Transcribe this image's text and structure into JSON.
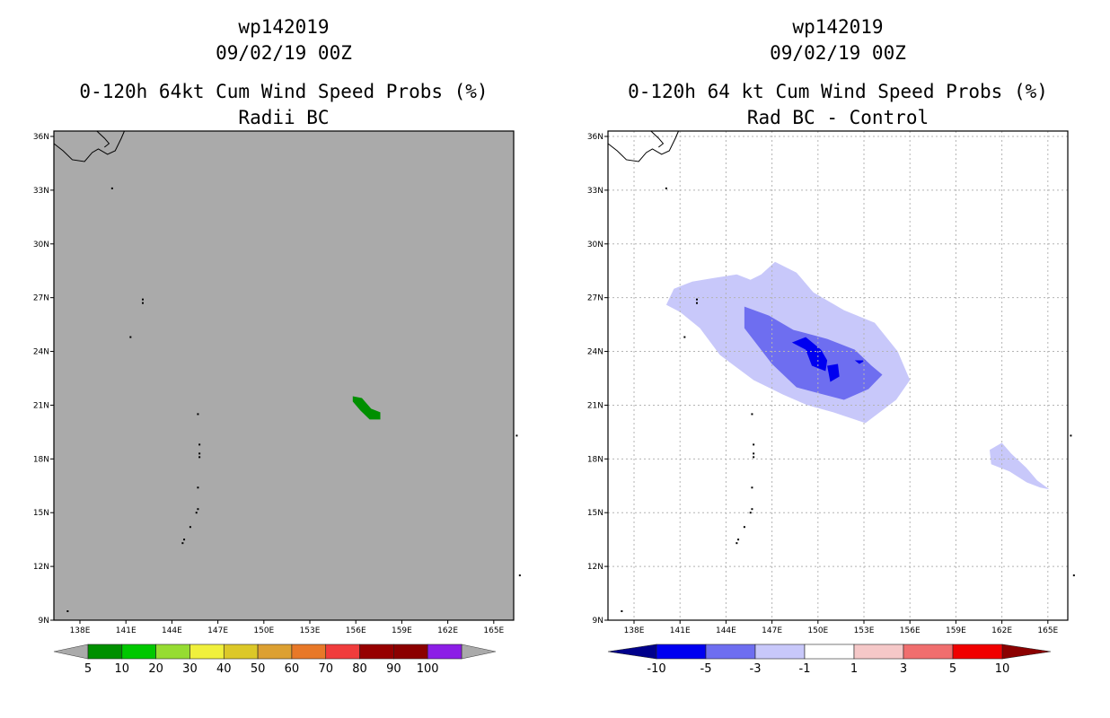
{
  "left_panel": {
    "title_line1": "wp142019",
    "title_line2": "09/02/19 00Z",
    "subtitle_line1": "0-120h 64kt Cum Wind Speed Probs (%)",
    "subtitle_line2": "Radii BC"
  },
  "right_panel": {
    "title_line1": "wp142019",
    "title_line2": "09/02/19 00Z",
    "subtitle_line1": "0-120h 64 kt Cum Wind Speed Probs (%)",
    "subtitle_line2": "Rad BC - Control"
  },
  "chart_data": [
    {
      "type": "heatmap",
      "name": "left",
      "title": "0-120h 64kt Cum Wind Speed Probs (%) Radii BC",
      "x_tick_labels": [
        "138E",
        "141E",
        "144E",
        "147E",
        "150E",
        "153E",
        "156E",
        "159E",
        "162E",
        "165E"
      ],
      "y_tick_labels": [
        "9N",
        "12N",
        "15N",
        "18N",
        "21N",
        "24N",
        "27N",
        "30N",
        "33N",
        "36N"
      ],
      "x_ticks": [
        138,
        141,
        144,
        147,
        150,
        153,
        156,
        159,
        162,
        165
      ],
      "y_ticks": [
        9,
        12,
        15,
        18,
        21,
        24,
        27,
        30,
        33,
        36
      ],
      "xlim": [
        136.3,
        166.3
      ],
      "ylim": [
        9,
        36.3
      ],
      "grid": false,
      "background_color": "#aaaaaa",
      "colorbar": {
        "labels": [
          "5",
          "10",
          "20",
          "30",
          "40",
          "50",
          "60",
          "70",
          "80",
          "90",
          "100"
        ],
        "colors": [
          "#008f00",
          "#00c800",
          "#96dc32",
          "#f0f03c",
          "#dcc828",
          "#dca032",
          "#e87828",
          "#f03c3c",
          "#960000",
          "#8b0000",
          "#8c1ee6"
        ]
      },
      "regions": [
        {
          "color": "#008f00",
          "points": [
            [
              155.8,
              21.5
            ],
            [
              156.4,
              21.4
            ],
            [
              157,
              20.8
            ],
            [
              157.6,
              20.6
            ],
            [
              157.6,
              20.2
            ],
            [
              156.9,
              20.2
            ],
            [
              156.3,
              20.7
            ],
            [
              155.8,
              21.2
            ]
          ]
        }
      ]
    },
    {
      "type": "heatmap",
      "name": "right",
      "title": "0-120h 64 kt Cum Wind Speed Probs (%) Rad BC - Control",
      "x_tick_labels": [
        "138E",
        "141E",
        "144E",
        "147E",
        "150E",
        "153E",
        "156E",
        "159E",
        "162E",
        "165E"
      ],
      "y_tick_labels": [
        "9N",
        "12N",
        "15N",
        "18N",
        "21N",
        "24N",
        "27N",
        "30N",
        "33N",
        "36N"
      ],
      "x_ticks": [
        138,
        141,
        144,
        147,
        150,
        153,
        156,
        159,
        162,
        165
      ],
      "y_ticks": [
        9,
        12,
        15,
        18,
        21,
        24,
        27,
        30,
        33,
        36
      ],
      "xlim": [
        136.3,
        166.3
      ],
      "ylim": [
        9,
        36.3
      ],
      "grid": true,
      "background_color": "#ffffff",
      "colorbar": {
        "labels": [
          "-10",
          "-5",
          "-3",
          "-1",
          "1",
          "3",
          "5",
          "10"
        ],
        "colors": [
          "#00008b",
          "#0000f0",
          "#6e6ef0",
          "#c8c8fa",
          "#ffffff",
          "#f5c8c8",
          "#f06e6e",
          "#f00000",
          "#8b0000"
        ]
      },
      "regions": [
        {
          "color": "#c8c8fa",
          "points": [
            [
              140.6,
              27.5
            ],
            [
              141.8,
              27.9
            ],
            [
              143.2,
              28.1
            ],
            [
              144.7,
              28.3
            ],
            [
              145.6,
              28.0
            ],
            [
              146.3,
              28.3
            ],
            [
              147.2,
              29.0
            ],
            [
              148.6,
              28.4
            ],
            [
              149.7,
              27.3
            ],
            [
              151.7,
              26.3
            ],
            [
              153.7,
              25.6
            ],
            [
              155.2,
              24.0
            ],
            [
              156.0,
              22.4
            ],
            [
              155.1,
              21.3
            ],
            [
              153.1,
              20.0
            ],
            [
              151.0,
              20.6
            ],
            [
              149.3,
              21.0
            ],
            [
              147.7,
              21.6
            ],
            [
              145.8,
              22.4
            ],
            [
              143.6,
              23.8
            ],
            [
              142.3,
              25.3
            ],
            [
              141.0,
              26.2
            ],
            [
              140.1,
              26.6
            ]
          ]
        },
        {
          "color": "#6e6ef0",
          "points": [
            [
              145.2,
              26.5
            ],
            [
              146.8,
              26.0
            ],
            [
              148.4,
              25.2
            ],
            [
              149.3,
              25.0
            ],
            [
              150.6,
              24.7
            ],
            [
              152.4,
              24.1
            ],
            [
              153.5,
              23.2
            ],
            [
              154.2,
              22.7
            ],
            [
              153.3,
              21.9
            ],
            [
              151.7,
              21.3
            ],
            [
              149.9,
              21.7
            ],
            [
              148.6,
              22.0
            ],
            [
              147.0,
              23.3
            ],
            [
              145.2,
              25.3
            ]
          ]
        },
        {
          "color": "#0000f0",
          "points": [
            [
              148.3,
              24.5
            ],
            [
              149.2,
              24.1
            ],
            [
              149.6,
              23.2
            ],
            [
              150.5,
              22.9
            ],
            [
              150.6,
              23.5
            ],
            [
              150.2,
              24.1
            ],
            [
              149.2,
              24.8
            ]
          ]
        },
        {
          "color": "#0000f0",
          "points": [
            [
              150.6,
              23.2
            ],
            [
              151.3,
              23.3
            ],
            [
              151.4,
              22.6
            ],
            [
              150.8,
              22.3
            ]
          ]
        },
        {
          "color": "#0000f0",
          "points": [
            [
              152.4,
              23.5
            ],
            [
              153.1,
              23.5
            ],
            [
              152.7,
              23.3
            ]
          ]
        },
        {
          "color": "#c8c8fa",
          "points": [
            [
              161.2,
              18.5
            ],
            [
              162.0,
              18.9
            ],
            [
              162.6,
              18.3
            ],
            [
              163.6,
              17.5
            ],
            [
              164.3,
              16.8
            ],
            [
              165.1,
              16.3
            ],
            [
              164.5,
              16.4
            ],
            [
              163.6,
              16.7
            ],
            [
              162.5,
              17.3
            ],
            [
              161.3,
              17.7
            ]
          ]
        }
      ]
    }
  ]
}
